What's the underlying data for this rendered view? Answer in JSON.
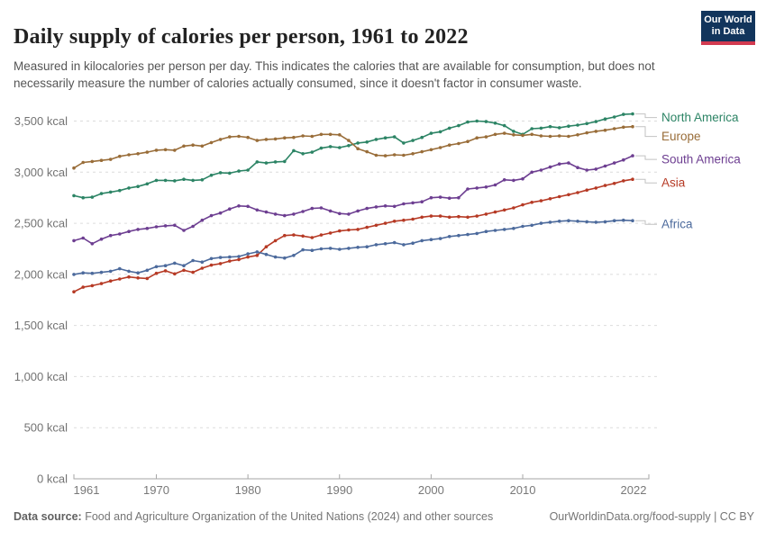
{
  "header": {
    "title": "Daily supply of calories per person, 1961 to 2022",
    "subtitle": "Measured in kilocalories per person per day. This indicates the calories that are available for consumption, but does not necessarily measure the number of calories actually consumed, since it doesn't factor in consumer waste.",
    "logo": {
      "line1": "Our World",
      "line2": "in Data",
      "bg_color": "#12355c",
      "bar_color": "#d23a50"
    }
  },
  "chart_data": {
    "type": "line",
    "title": "Daily supply of calories per person, 1961 to 2022",
    "ylabel": "",
    "xlabel": "",
    "ylim": [
      0,
      3500
    ],
    "grid": "horizontal-dashed",
    "legend_position": "right-of-line-ends",
    "yticks": [
      {
        "value": 0,
        "label": "0 kcal"
      },
      {
        "value": 500,
        "label": "500 kcal"
      },
      {
        "value": 1000,
        "label": "1,000 kcal"
      },
      {
        "value": 1500,
        "label": "1,500 kcal"
      },
      {
        "value": 2000,
        "label": "2,000 kcal"
      },
      {
        "value": 2500,
        "label": "2,500 kcal"
      },
      {
        "value": 3000,
        "label": "3,000 kcal"
      },
      {
        "value": 3500,
        "label": "3,500 kcal"
      }
    ],
    "xticks": [
      1961,
      1970,
      1980,
      1990,
      2000,
      2010,
      2022
    ],
    "x": [
      1961,
      1962,
      1963,
      1964,
      1965,
      1966,
      1967,
      1968,
      1969,
      1970,
      1971,
      1972,
      1973,
      1974,
      1975,
      1976,
      1977,
      1978,
      1979,
      1980,
      1981,
      1982,
      1983,
      1984,
      1985,
      1986,
      1987,
      1988,
      1989,
      1990,
      1991,
      1992,
      1993,
      1994,
      1995,
      1996,
      1997,
      1998,
      1999,
      2000,
      2001,
      2002,
      2003,
      2004,
      2005,
      2006,
      2007,
      2008,
      2009,
      2010,
      2011,
      2012,
      2013,
      2014,
      2015,
      2016,
      2017,
      2018,
      2019,
      2020,
      2021,
      2022
    ],
    "series": [
      {
        "name": "North America",
        "color": "#2C8465",
        "values": [
          2770,
          2750,
          2755,
          2790,
          2805,
          2820,
          2845,
          2860,
          2885,
          2920,
          2920,
          2915,
          2930,
          2920,
          2925,
          2970,
          2995,
          2990,
          3010,
          3020,
          3100,
          3090,
          3100,
          3105,
          3210,
          3180,
          3195,
          3235,
          3250,
          3240,
          3260,
          3285,
          3295,
          3320,
          3335,
          3345,
          3285,
          3310,
          3340,
          3380,
          3395,
          3430,
          3455,
          3490,
          3500,
          3495,
          3480,
          3455,
          3400,
          3370,
          3425,
          3430,
          3445,
          3435,
          3450,
          3460,
          3475,
          3495,
          3520,
          3540,
          3565,
          3570
        ]
      },
      {
        "name": "Europe",
        "color": "#996D39",
        "values": [
          3040,
          3095,
          3105,
          3115,
          3125,
          3155,
          3170,
          3180,
          3195,
          3215,
          3220,
          3215,
          3255,
          3265,
          3255,
          3290,
          3320,
          3345,
          3350,
          3340,
          3310,
          3320,
          3325,
          3335,
          3340,
          3355,
          3350,
          3370,
          3370,
          3365,
          3310,
          3230,
          3200,
          3165,
          3160,
          3170,
          3165,
          3180,
          3200,
          3220,
          3240,
          3265,
          3280,
          3300,
          3335,
          3345,
          3370,
          3380,
          3365,
          3360,
          3370,
          3355,
          3350,
          3355,
          3350,
          3365,
          3385,
          3400,
          3410,
          3425,
          3440,
          3445
        ]
      },
      {
        "name": "South America",
        "color": "#6D3E91",
        "values": [
          2330,
          2355,
          2300,
          2345,
          2380,
          2395,
          2420,
          2440,
          2450,
          2465,
          2475,
          2480,
          2430,
          2470,
          2530,
          2575,
          2600,
          2640,
          2670,
          2665,
          2630,
          2610,
          2590,
          2575,
          2590,
          2615,
          2645,
          2650,
          2620,
          2595,
          2590,
          2620,
          2645,
          2660,
          2670,
          2665,
          2690,
          2700,
          2710,
          2750,
          2755,
          2745,
          2750,
          2835,
          2845,
          2855,
          2875,
          2925,
          2920,
          2935,
          3000,
          3020,
          3050,
          3080,
          3090,
          3045,
          3020,
          3030,
          3060,
          3090,
          3120,
          3160
        ]
      },
      {
        "name": "Asia",
        "color": "#B63A25",
        "values": [
          1830,
          1875,
          1890,
          1910,
          1935,
          1955,
          1975,
          1965,
          1960,
          2010,
          2035,
          2005,
          2040,
          2020,
          2060,
          2090,
          2105,
          2130,
          2145,
          2170,
          2185,
          2270,
          2330,
          2380,
          2385,
          2375,
          2360,
          2385,
          2405,
          2425,
          2435,
          2440,
          2460,
          2480,
          2500,
          2520,
          2530,
          2540,
          2560,
          2570,
          2570,
          2560,
          2565,
          2560,
          2570,
          2590,
          2610,
          2630,
          2650,
          2680,
          2705,
          2720,
          2740,
          2760,
          2780,
          2800,
          2825,
          2845,
          2870,
          2890,
          2915,
          2930
        ]
      },
      {
        "name": "Africa",
        "color": "#4C6A9C",
        "values": [
          2000,
          2015,
          2010,
          2020,
          2030,
          2055,
          2030,
          2015,
          2040,
          2075,
          2085,
          2110,
          2085,
          2135,
          2120,
          2155,
          2165,
          2170,
          2175,
          2200,
          2220,
          2195,
          2170,
          2160,
          2185,
          2240,
          2235,
          2250,
          2255,
          2245,
          2255,
          2265,
          2270,
          2290,
          2300,
          2310,
          2290,
          2305,
          2330,
          2340,
          2350,
          2370,
          2380,
          2390,
          2400,
          2420,
          2430,
          2440,
          2450,
          2470,
          2480,
          2500,
          2510,
          2520,
          2525,
          2520,
          2515,
          2510,
          2515,
          2525,
          2530,
          2525
        ]
      }
    ]
  },
  "footer": {
    "source_label": "Data source:",
    "source_text": " Food and Agriculture Organization of the United Nations (2024) and other sources",
    "credit": "OurWorldinData.org/food-supply | CC BY"
  }
}
